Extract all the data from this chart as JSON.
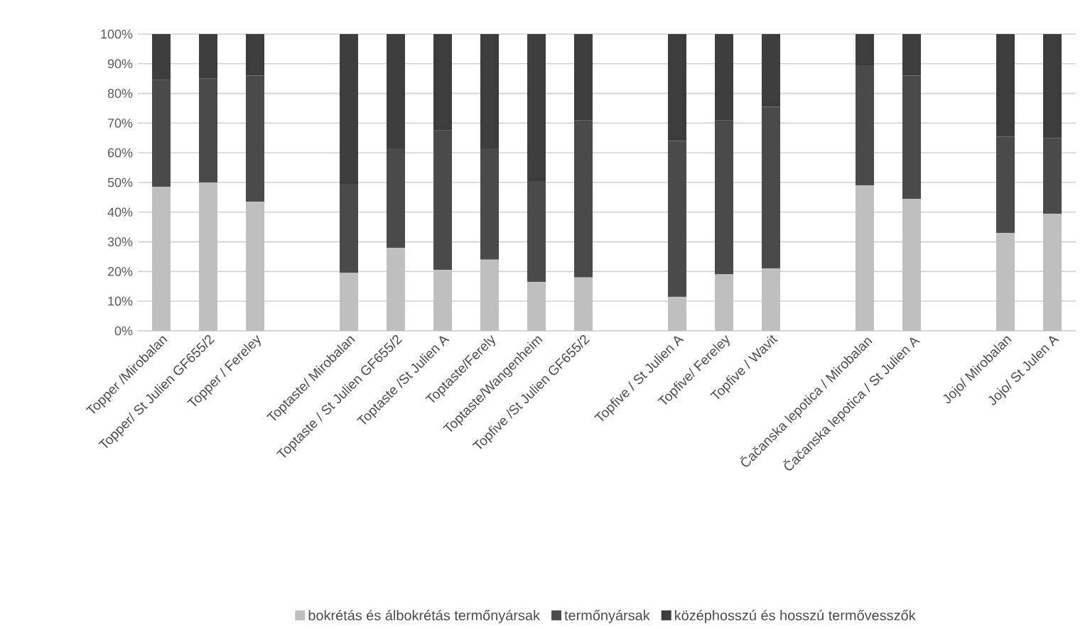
{
  "chart_data": {
    "type": "bar",
    "stacked": true,
    "categories": [
      "Topper /Mirobalan",
      "Topper/ St Julien GF655/2",
      "Topper / Fereley",
      null,
      "Toptaste/ Mirobalan",
      "Toptaste / St Julien GF655/2",
      "Toptaste /St Julien A",
      "Toptaste/Ferely",
      "Toptaste/Wangenheim",
      "Topfive /St Julien GF655/2",
      null,
      "Topfive / St Julien A",
      "Topfive/ Fereley",
      "Topfive / Wavit",
      null,
      "Čačanska lepotica / Mirobalan",
      "Čačanska lepotica / St Julien A",
      null,
      "Jojo/ Mirobalan",
      "Jojo/ St Julen A"
    ],
    "series": [
      {
        "name": "bokrétás és álbokrétás termőnyársak",
        "color": "#bfbfbf",
        "values": [
          48.5,
          50,
          43.5,
          null,
          19.5,
          28,
          20.5,
          24,
          16.5,
          18,
          null,
          11.5,
          19,
          21,
          null,
          49,
          44.5,
          null,
          33,
          39.5
        ]
      },
      {
        "name": "termőnyársak",
        "color": "#4a4a4a",
        "values": [
          36,
          35,
          42.5,
          null,
          30,
          33.5,
          47,
          37.5,
          34,
          53,
          null,
          52.5,
          52,
          54.5,
          null,
          40.5,
          41.5,
          null,
          32.5,
          25.5
        ]
      },
      {
        "name": "középhosszú és hosszú termővesszők",
        "color": "#3c3c3c",
        "values": [
          15.5,
          15,
          14,
          null,
          50.5,
          38.5,
          32.5,
          38.5,
          49.5,
          29,
          null,
          36,
          29,
          24.5,
          null,
          10.5,
          14,
          null,
          34.5,
          35
        ]
      }
    ],
    "ylim": [
      0,
      100
    ],
    "yticks": [
      {
        "value": 0,
        "label": "0%"
      },
      {
        "value": 10,
        "label": "10%"
      },
      {
        "value": 20,
        "label": "20%"
      },
      {
        "value": 30,
        "label": "30%"
      },
      {
        "value": 40,
        "label": "40%"
      },
      {
        "value": 50,
        "label": "50%"
      },
      {
        "value": 60,
        "label": "60%"
      },
      {
        "value": 70,
        "label": "70%"
      },
      {
        "value": 80,
        "label": "80%"
      },
      {
        "value": 90,
        "label": "90%"
      },
      {
        "value": 100,
        "label": "100%"
      }
    ],
    "grid": "y",
    "legend": "bottom"
  }
}
